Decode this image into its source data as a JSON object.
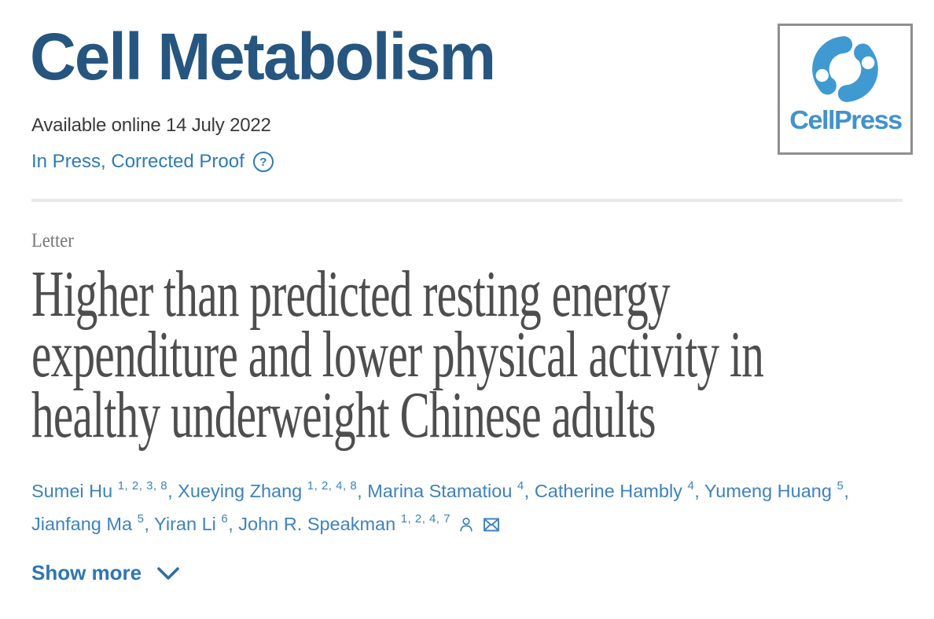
{
  "header": {
    "journal_title": "Cell Metabolism",
    "available_online": "Available online 14 July 2022",
    "in_press_label": "In Press, Corrected Proof",
    "help_icon_glyph": "?",
    "publisher_logo_text": "CellPress"
  },
  "article": {
    "type_label": "Letter",
    "title": "Higher than predicted resting energy expenditure and lower physical activity in healthy underweight Chinese adults",
    "title_lines": [
      "Higher than predicted resting energy",
      "expenditure and lower physical activity in",
      "healthy underweight Chinese adults"
    ],
    "authors": [
      {
        "name": "Sumei Hu",
        "sup": "1, 2, 3, 8"
      },
      {
        "name": "Xueying Zhang",
        "sup": "1, 2, 4, 8"
      },
      {
        "name": "Marina Stamatiou",
        "sup": "4"
      },
      {
        "name": "Catherine Hambly",
        "sup": "4"
      },
      {
        "name": "Yumeng Huang",
        "sup": "5"
      },
      {
        "name": "Jianfang Ma",
        "sup": "5"
      },
      {
        "name": "Yiran Li",
        "sup": "6"
      },
      {
        "name": "John R. Speakman",
        "sup": "1, 2, 4, 7"
      }
    ],
    "show_more_label": "Show more"
  },
  "colors": {
    "journal_blue": "#26567f",
    "link_blue": "#2d7cb3",
    "author_blue": "#3e82bd",
    "title_gray": "#4e4e4e",
    "label_gray": "#757575",
    "logo_blue": "#3f9ad2",
    "logo_text_blue": "#4192cd",
    "divider_gray": "#e9e9e9"
  }
}
